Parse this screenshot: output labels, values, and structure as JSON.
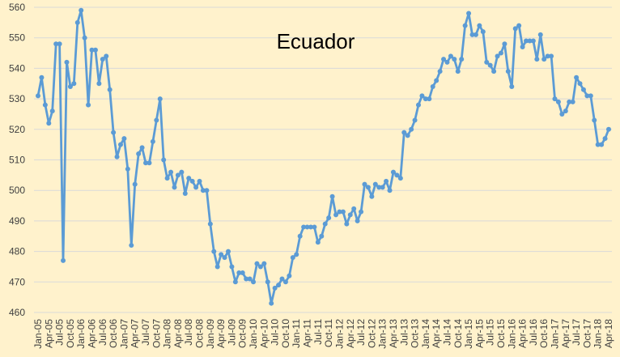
{
  "chart_data": {
    "type": "line",
    "title": "Ecuador",
    "xlabel": "",
    "ylabel": "",
    "ylim": [
      460,
      560
    ],
    "yticks": [
      460,
      470,
      480,
      490,
      500,
      510,
      520,
      530,
      540,
      550,
      560
    ],
    "grid": true,
    "legend": "none",
    "x_tick_labels": [
      "Jan-05",
      "Apr-05",
      "Jul-05",
      "Oct-05",
      "Jan-06",
      "Apr-06",
      "Jul-06",
      "Oct-06",
      "Jan-07",
      "Apr-07",
      "Jul-07",
      "Oct-07",
      "Jan-08",
      "Apr-08",
      "Jul-08",
      "Oct-08",
      "Jan-09",
      "Apr-09",
      "Jul-09",
      "Oct-09",
      "Jan-10",
      "Apr-10",
      "Jul-10",
      "Oct-10",
      "Jan-11",
      "Apr-11",
      "Jul-11",
      "Oct-11",
      "Jan-12",
      "Apr-12",
      "Jul-12",
      "Oct-12",
      "Jan-13",
      "Apr-13",
      "Jul-13",
      "Oct-13",
      "Jan-14",
      "Apr-14",
      "Jul-14",
      "Oct-14",
      "Jan-15",
      "Apr-15",
      "Jul-15",
      "Oct-15",
      "Jan-16",
      "Apr-16",
      "Jul-16",
      "Oct-16",
      "Jan-17",
      "Apr-17",
      "Jul-17",
      "Oct-17",
      "Jan-18",
      "Apr-18"
    ],
    "series": [
      {
        "color": "#5B9BD5",
        "start": "Jan-05",
        "values": [
          531,
          537,
          528,
          522,
          526,
          548,
          548,
          477,
          542,
          534,
          535,
          555,
          559,
          550,
          528,
          546,
          546,
          535,
          543,
          544,
          533,
          519,
          511,
          515,
          517,
          507,
          482,
          502,
          512,
          514,
          509,
          509,
          516,
          523,
          530,
          510,
          504,
          506,
          501,
          505,
          506,
          499,
          504,
          503,
          501,
          503,
          500,
          500,
          489,
          480,
          475,
          479,
          478,
          480,
          475,
          470,
          473,
          473,
          471,
          471,
          470,
          476,
          475,
          476,
          470,
          463,
          468,
          469,
          471,
          470,
          472,
          478,
          479,
          485,
          488,
          488,
          488,
          488,
          483,
          485,
          489,
          491,
          498,
          492,
          493,
          493,
          489,
          492,
          494,
          490,
          493,
          502,
          501,
          498,
          502,
          501,
          501,
          503,
          500,
          506,
          505,
          504,
          519,
          518,
          520,
          523,
          528,
          531,
          530,
          530,
          534,
          536,
          539,
          543,
          542,
          544,
          543,
          539,
          543,
          554,
          558,
          551,
          551,
          554,
          552,
          542,
          541,
          539,
          544,
          545,
          548,
          539,
          534,
          553,
          554,
          547,
          549,
          549,
          549,
          543,
          551,
          543,
          544,
          544,
          530,
          529,
          525,
          526,
          529,
          529,
          537,
          535,
          533,
          531,
          531,
          523,
          515,
          515,
          517,
          520
        ]
      }
    ]
  }
}
